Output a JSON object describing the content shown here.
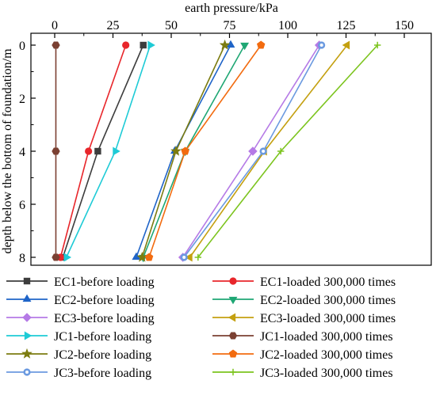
{
  "chart_data": {
    "type": "line",
    "title": "",
    "xlabel": "earth pressure/kPa",
    "ylabel": "depth below the bottom of foundation/m",
    "x_axis_position": "top",
    "y_axis_inverted": true,
    "xlim": [
      -10,
      160
    ],
    "ylim": [
      0,
      8.3
    ],
    "x_ticks": [
      0,
      25,
      50,
      75,
      100,
      125,
      150
    ],
    "x_tick_labels": [
      "0",
      "25",
      "50",
      "75",
      "100",
      "125",
      "150"
    ],
    "y_ticks": [
      0,
      2,
      4,
      6,
      8
    ],
    "y_tick_labels": [
      "0",
      "2",
      "4",
      "6",
      "8"
    ],
    "grid": false,
    "legend_position": "bottom",
    "y": [
      0,
      4,
      8
    ],
    "series": [
      {
        "name": "EC1-before loading",
        "color": "#3d3d3d",
        "marker": "square",
        "x": [
          38,
          18.5,
          3.5
        ]
      },
      {
        "name": "EC1-loaded 300,000 times",
        "color": "#e8262b",
        "marker": "circle",
        "x": [
          30.5,
          14.5,
          2.5
        ]
      },
      {
        "name": "EC2-before loading",
        "color": "#1f64c8",
        "marker": "triangle-up",
        "x": [
          75.5,
          51.5,
          35
        ]
      },
      {
        "name": "EC2-loaded 300,000 times",
        "color": "#1fa774",
        "marker": "triangle-down",
        "x": [
          81.5,
          56,
          38
        ]
      },
      {
        "name": "EC3-before loading",
        "color": "#b57ae6",
        "marker": "diamond",
        "x": [
          113.5,
          85,
          55
        ]
      },
      {
        "name": "EC3-loaded 300,000 times",
        "color": "#c4a010",
        "marker": "triangle-left",
        "x": [
          125.5,
          90,
          58
        ]
      },
      {
        "name": "JC1-before loading",
        "color": "#1ecbd6",
        "marker": "triangle-right",
        "x": [
          41,
          26,
          5
        ]
      },
      {
        "name": "JC1-loaded 300,000 times",
        "color": "#7b4032",
        "marker": "hexagon",
        "x": [
          0.5,
          0.5,
          0.5
        ]
      },
      {
        "name": "JC2-before loading",
        "color": "#7c7c10",
        "marker": "star",
        "x": [
          73,
          52,
          37.5
        ]
      },
      {
        "name": "JC2-loaded 300,000 times",
        "color": "#f26b0f",
        "marker": "pentagon",
        "x": [
          88.5,
          56,
          40.5
        ]
      },
      {
        "name": "JC3-before loading",
        "color": "#6b9ae0",
        "marker": "circle-dot",
        "x": [
          114.5,
          89.5,
          55.5
        ]
      },
      {
        "name": "JC3-loaded 300,000 times",
        "color": "#7cc41e",
        "marker": "plus",
        "x": [
          138.5,
          97,
          61.5
        ]
      }
    ]
  }
}
